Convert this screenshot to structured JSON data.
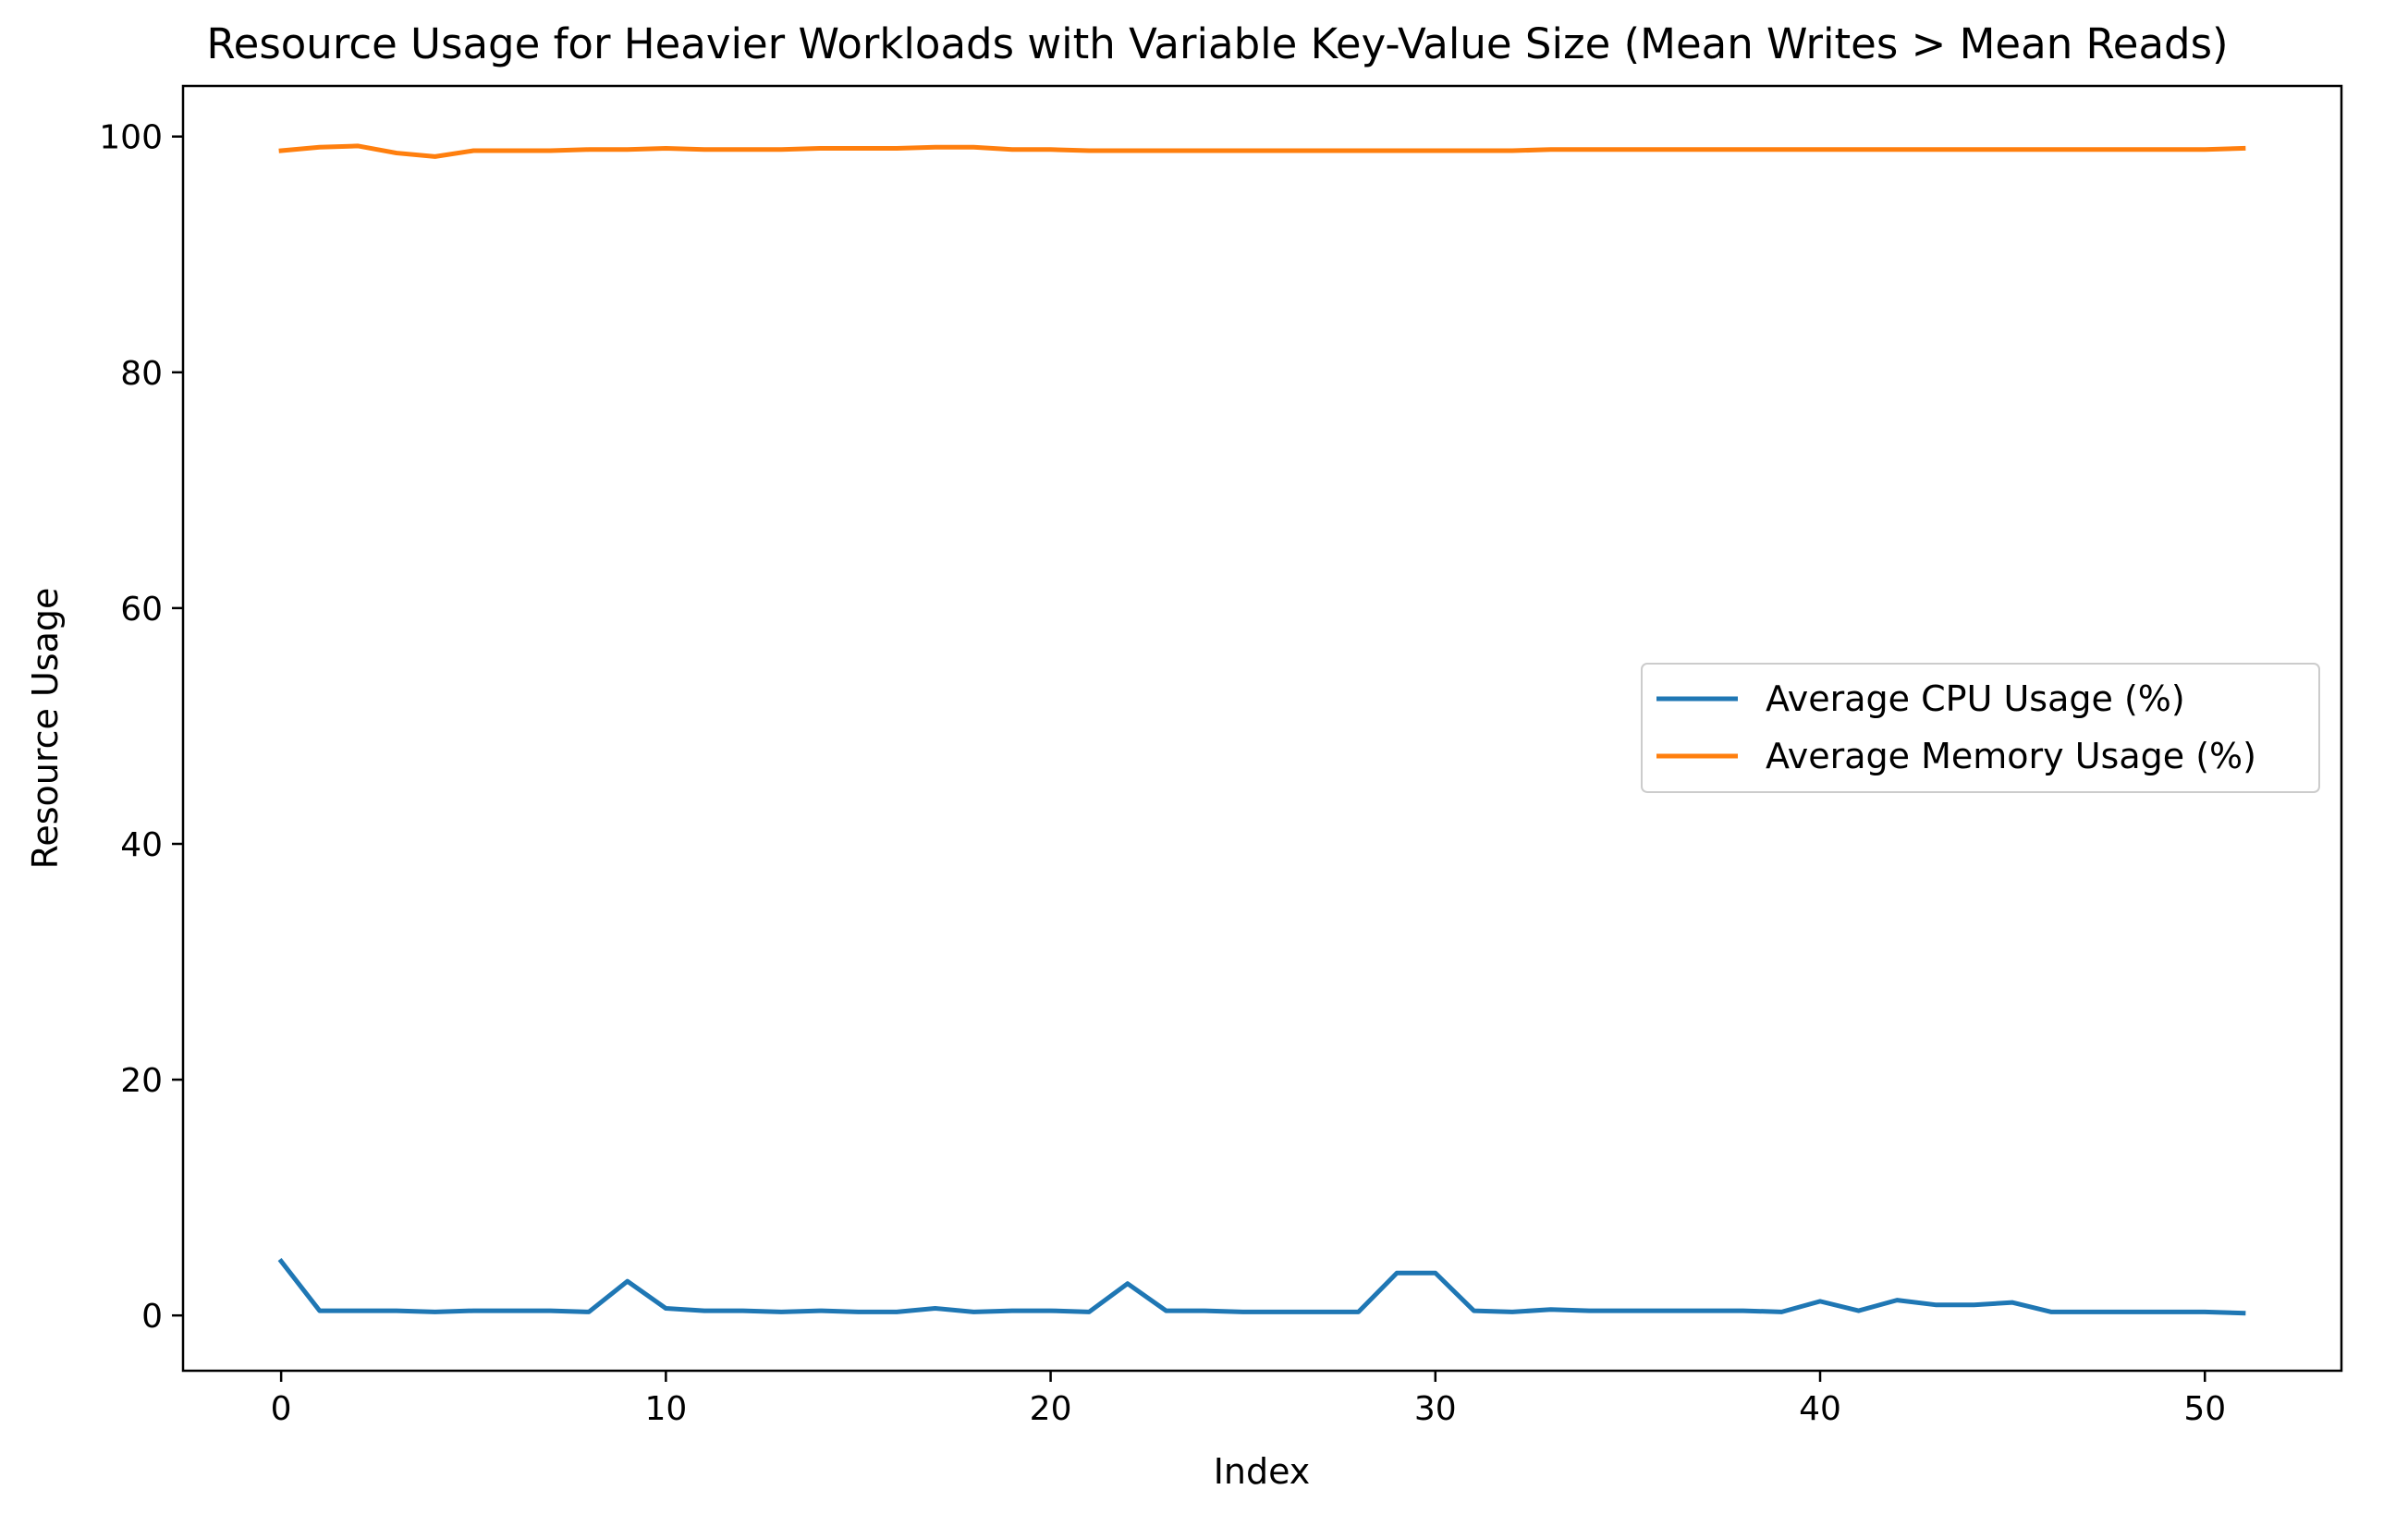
{
  "chart_data": {
    "type": "line",
    "title": "Resource Usage for Heavier Workloads with Variable Key-Value Size (Mean Writes > Mean Reads)",
    "xlabel": "Index",
    "ylabel": "Resource Usage",
    "xlim": [
      -2.55,
      53.55
    ],
    "ylim": [
      -4.69,
      104.29
    ],
    "xticks": [
      0,
      10,
      20,
      30,
      40,
      50
    ],
    "yticks": [
      0,
      20,
      40,
      60,
      80,
      100
    ],
    "grid": false,
    "legend_position": "center-right",
    "x": [
      0,
      1,
      2,
      3,
      4,
      5,
      6,
      7,
      8,
      9,
      10,
      11,
      12,
      13,
      14,
      15,
      16,
      17,
      18,
      19,
      20,
      21,
      22,
      23,
      24,
      25,
      26,
      27,
      28,
      29,
      30,
      31,
      32,
      33,
      34,
      35,
      36,
      37,
      38,
      39,
      40,
      41,
      42,
      43,
      44,
      45,
      46,
      47,
      48,
      49,
      50,
      51
    ],
    "series": [
      {
        "name": "Average CPU Usage (%)",
        "color": "#1f77b4",
        "values": [
          4.6,
          0.4,
          0.4,
          0.4,
          0.3,
          0.4,
          0.4,
          0.4,
          0.3,
          2.9,
          0.6,
          0.4,
          0.4,
          0.3,
          0.4,
          0.3,
          0.3,
          0.6,
          0.3,
          0.4,
          0.4,
          0.3,
          2.7,
          0.4,
          0.4,
          0.3,
          0.3,
          0.3,
          0.3,
          3.6,
          3.6,
          0.4,
          0.3,
          0.5,
          0.4,
          0.4,
          0.4,
          0.4,
          0.4,
          0.3,
          1.2,
          0.4,
          1.3,
          0.9,
          0.9,
          1.1,
          0.3,
          0.3,
          0.3,
          0.3,
          0.3,
          0.2
        ]
      },
      {
        "name": "Average Memory Usage (%)",
        "color": "#ff7f0e",
        "values": [
          98.8,
          99.1,
          99.2,
          98.6,
          98.3,
          98.8,
          98.8,
          98.8,
          98.9,
          98.9,
          99.0,
          98.9,
          98.9,
          98.9,
          99.0,
          99.0,
          99.0,
          99.1,
          99.1,
          98.9,
          98.9,
          98.8,
          98.8,
          98.8,
          98.8,
          98.8,
          98.8,
          98.8,
          98.8,
          98.8,
          98.8,
          98.8,
          98.8,
          98.9,
          98.9,
          98.9,
          98.9,
          98.9,
          98.9,
          98.9,
          98.9,
          98.9,
          98.9,
          98.9,
          98.9,
          98.9,
          98.9,
          98.9,
          98.9,
          98.9,
          98.9,
          99.0
        ]
      }
    ]
  }
}
